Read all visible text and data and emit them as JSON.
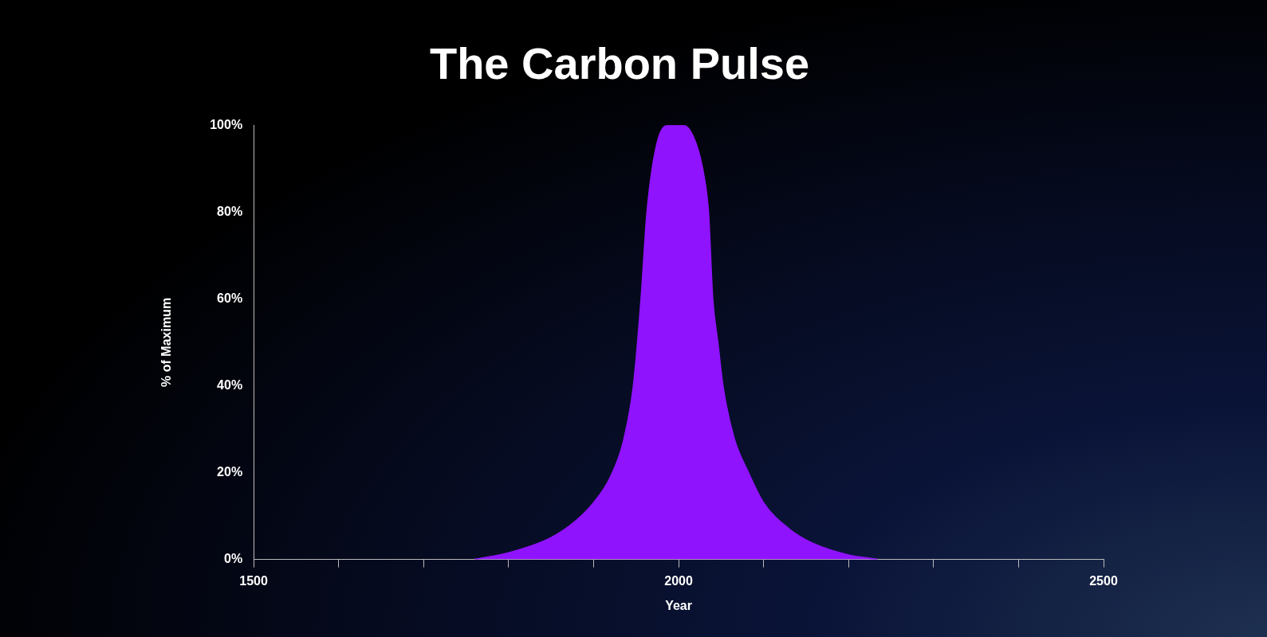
{
  "chart_data": {
    "type": "area",
    "title": "The Carbon Pulse",
    "xlabel": "Year",
    "ylabel": "% of Maximum",
    "series": [
      {
        "color": "#9013fe",
        "x": [
          1760,
          1800,
          1850,
          1880,
          1900,
          1920,
          1935,
          1947,
          1956,
          1963,
          1975,
          1990,
          2005,
          2020,
          2030,
          2035,
          2040,
          2046,
          2052,
          2065,
          2082,
          2100,
          2130,
          2160,
          2200,
          2234
        ],
        "values": [
          0,
          1.5,
          5,
          9,
          13,
          19,
          27,
          40,
          60,
          80,
          96,
          100,
          100,
          96,
          88,
          80,
          60,
          50,
          40,
          28,
          20,
          13,
          7,
          3.5,
          1,
          0
        ]
      }
    ],
    "xlim": [
      1500,
      2500
    ],
    "xticks": [
      1500,
      {
        "value": 1600,
        "label": null
      },
      {
        "value": 1700,
        "label": null
      },
      {
        "value": 1800,
        "label": null
      },
      {
        "value": 1900,
        "label": null
      },
      2000,
      {
        "value": 2100,
        "label": null
      },
      {
        "value": 2200,
        "label": null
      },
      {
        "value": 2300,
        "label": null
      },
      {
        "value": 2400,
        "label": null
      },
      2500
    ],
    "ylim": [
      0,
      100
    ],
    "yticks": [
      {
        "value": 0,
        "label": "0%"
      },
      {
        "value": 20,
        "label": "20%"
      },
      {
        "value": 40,
        "label": "40%"
      },
      {
        "value": 60,
        "label": "60%"
      },
      {
        "value": 80,
        "label": "80%"
      },
      {
        "value": 100,
        "label": "100%"
      }
    ],
    "grid": false,
    "legend": false
  }
}
